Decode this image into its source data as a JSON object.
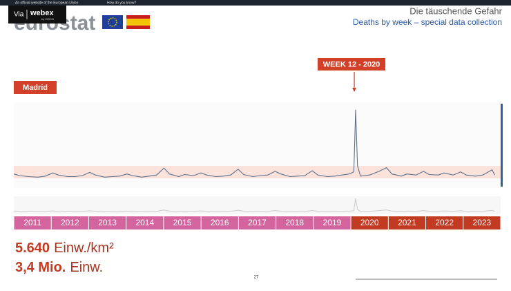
{
  "banner": {
    "official": "An official website of the European Union",
    "how": "How do you know?"
  },
  "overlay": {
    "via": "Via",
    "brand": "webex",
    "by": "by CISCO"
  },
  "logo": "eurostat",
  "header": {
    "title": "Die täuschende Gefahr",
    "subtitle": "Deaths by week – special data collection"
  },
  "region": "Madrid",
  "chart_data": {
    "type": "line",
    "color": "#5a6f8c",
    "annotation": {
      "text": "WEEK 12 - 2020",
      "x": 2020.22
    },
    "xlim": [
      2011,
      2024
    ],
    "ylim": [
      0,
      8
    ],
    "x": [
      2011.0,
      2011.15,
      2011.4,
      2011.65,
      2011.85,
      2012.05,
      2012.2,
      2012.45,
      2012.65,
      2012.85,
      2013.05,
      2013.2,
      2013.45,
      2013.65,
      2013.85,
      2014.05,
      2014.2,
      2014.45,
      2014.65,
      2014.85,
      2015.05,
      2015.2,
      2015.45,
      2015.6,
      2015.85,
      2016.05,
      2016.2,
      2016.45,
      2016.65,
      2016.85,
      2017.05,
      2017.2,
      2017.45,
      2017.65,
      2017.85,
      2018.05,
      2018.2,
      2018.45,
      2018.65,
      2018.85,
      2019.05,
      2019.2,
      2019.45,
      2019.65,
      2019.85,
      2020.05,
      2020.17,
      2020.22,
      2020.27,
      2020.35,
      2020.6,
      2020.85,
      2021.05,
      2021.2,
      2021.45,
      2021.6,
      2021.85,
      2022.05,
      2022.2,
      2022.45,
      2022.6,
      2022.85,
      2023.05,
      2023.2,
      2023.45,
      2023.65,
      2023.9,
      2023.97
    ],
    "values": [
      1.2,
      1.05,
      0.95,
      0.9,
      1.0,
      1.3,
      1.1,
      0.95,
      0.95,
      1.05,
      1.35,
      1.1,
      0.9,
      0.95,
      1.0,
      1.2,
      1.05,
      0.9,
      1.0,
      1.1,
      1.75,
      1.2,
      0.95,
      1.15,
      1.05,
      1.3,
      1.1,
      0.95,
      1.0,
      1.1,
      1.65,
      1.15,
      0.95,
      1.05,
      1.1,
      1.45,
      1.2,
      0.95,
      1.0,
      1.05,
      1.5,
      1.1,
      0.95,
      1.0,
      1.1,
      1.2,
      1.4,
      7.3,
      2.0,
      1.0,
      1.1,
      1.45,
      1.8,
      1.2,
      1.0,
      1.2,
      1.1,
      1.45,
      1.15,
      1.1,
      1.3,
      1.1,
      1.4,
      1.1,
      1.0,
      1.1,
      1.6,
      1.1
    ],
    "year_bands": [
      {
        "label": "2011",
        "color": "#d4649e"
      },
      {
        "label": "2012",
        "color": "#d4649e"
      },
      {
        "label": "2013",
        "color": "#d4649e"
      },
      {
        "label": "2014",
        "color": "#d4649e"
      },
      {
        "label": "2015",
        "color": "#d4649e"
      },
      {
        "label": "2016",
        "color": "#d4649e"
      },
      {
        "label": "2017",
        "color": "#d4649e"
      },
      {
        "label": "2018",
        "color": "#d4649e"
      },
      {
        "label": "2019",
        "color": "#d4649e"
      },
      {
        "label": "2020",
        "color": "#c23a22"
      },
      {
        "label": "2021",
        "color": "#c23a22"
      },
      {
        "label": "2022",
        "color": "#c23a22"
      },
      {
        "label": "2023",
        "color": "#c23a22"
      }
    ]
  },
  "stats": [
    {
      "number": "5.640",
      "unit": "Einw./km²"
    },
    {
      "number": "3,4 Mio.",
      "unit": "Einw."
    }
  ],
  "page_number": "27"
}
